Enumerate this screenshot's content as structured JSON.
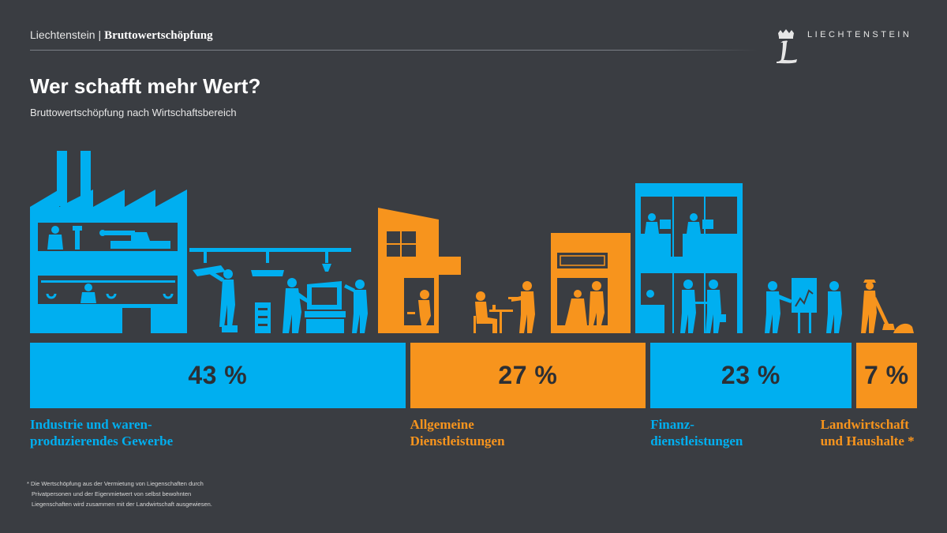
{
  "header": {
    "country": "Liechtenstein",
    "separator": "|",
    "topic": "Bruttowertschöpfung",
    "brand": "LIECHTENSTEIN"
  },
  "title": "Wer schafft mehr Wert?",
  "subtitle": "Bruttowertschöpfung nach Wirtschaftsbereich",
  "colors": {
    "background": "#3a3d42",
    "blue": "#00aff0",
    "orange": "#f7941d",
    "value_text": "#2c2f34"
  },
  "chart_data": {
    "type": "bar",
    "orientation": "stacked-horizontal",
    "unit": "%",
    "categories": [
      "Industrie und warenproduzierendes Gewerbe",
      "Allgemeine Dienstleistungen",
      "Finanzdienstleistungen",
      "Landwirtschaft und Haushalte *"
    ],
    "values": [
      43,
      27,
      23,
      7
    ],
    "value_labels": [
      "43 %",
      "27 %",
      "23 %",
      "7 %"
    ],
    "label_lines": [
      [
        "Industrie und waren-",
        "produzierendes Gewerbe"
      ],
      [
        "Allgemeine",
        "Dienstleistungen"
      ],
      [
        "Finanz-",
        "dienstleistungen"
      ],
      [
        "Landwirtschaft",
        "und Haushalte *"
      ]
    ],
    "bar_colors": [
      "#00aff0",
      "#f7941d",
      "#00aff0",
      "#f7941d"
    ]
  },
  "footnote": [
    "* Die Wertschöpfung aus der Vermietung von Liegenschaften durch",
    "Privatpersonen und der Eigenmietwert von selbst bewohnten",
    "Liegenschaften wird zusammen mit der Landwirtschaft ausgewiesen."
  ]
}
